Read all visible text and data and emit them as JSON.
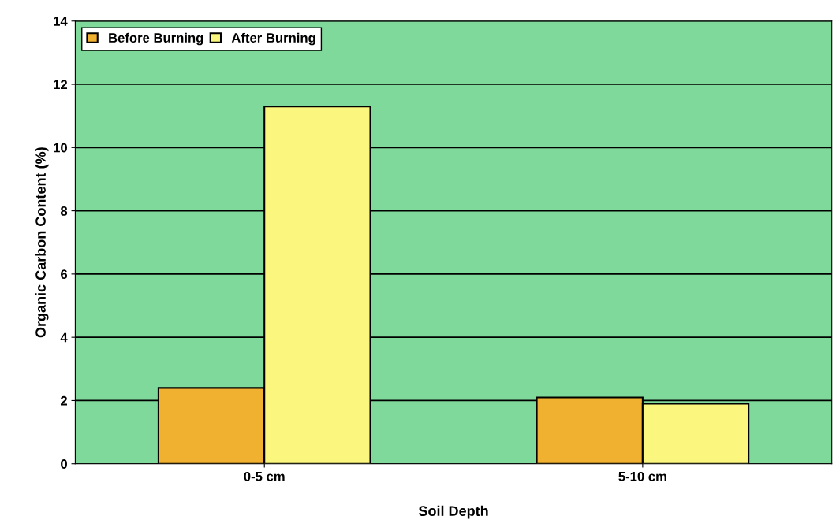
{
  "chart_data": {
    "type": "bar",
    "xlabel": "Soil Depth",
    "ylabel": "Organic Carbon Content (%)",
    "categories": [
      "0-5 cm",
      "5-10 cm"
    ],
    "series": [
      {
        "name": "Before Burning",
        "color": "#f0b030",
        "values": [
          2.4,
          2.1
        ]
      },
      {
        "name": "After Burning",
        "color": "#fbf77e",
        "values": [
          11.3,
          1.9
        ]
      }
    ],
    "ylim": [
      0,
      14
    ],
    "yticks": [
      0,
      2,
      4,
      6,
      8,
      10,
      12,
      14
    ],
    "grid": "y",
    "legend": "top left"
  }
}
